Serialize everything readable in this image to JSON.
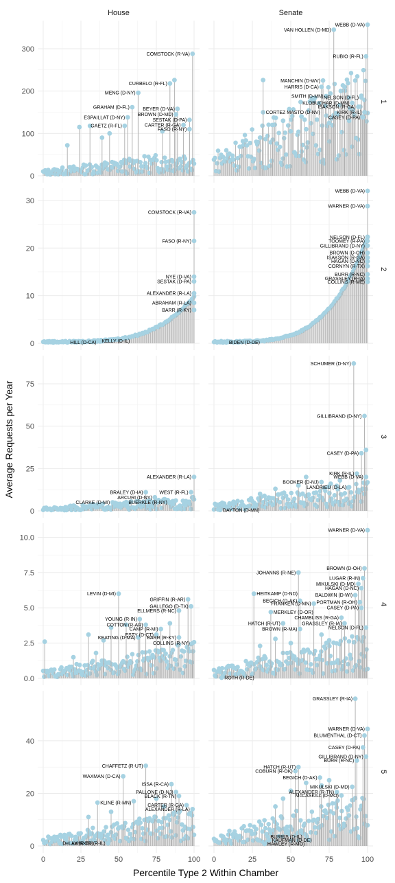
{
  "chart_data": {
    "type": "scatter",
    "subtype": "lollipop-faceted",
    "xlabel": "Percentile Type 2 Within Chamber",
    "ylabel": "Average Requests per Year",
    "columns": [
      "House",
      "Senate"
    ],
    "rows": [
      "1",
      "2",
      "3",
      "4",
      "5"
    ],
    "xlim": [
      0,
      100
    ],
    "x_ticks": [
      0,
      25,
      50,
      75,
      100
    ],
    "point_color": "#a6d2e2",
    "stem_color": "#b3b3b3",
    "grid": true,
    "facets": [
      {
        "col": "House",
        "row": "1",
        "ylim": [
          0,
          360
        ],
        "y_ticks": [
          0,
          100,
          200,
          300
        ],
        "base_max": 60,
        "points": [
          {
            "x": 99,
            "y": 288,
            "label": "COMSTOCK (R-VA)"
          },
          {
            "x": 84,
            "y": 218,
            "label": "CURBELO (R-FL)"
          },
          {
            "x": 87,
            "y": 226
          },
          {
            "x": 63,
            "y": 196,
            "label": "MENG (D-NY)"
          },
          {
            "x": 59,
            "y": 162,
            "label": "GRAHAM (D-FL)"
          },
          {
            "x": 56,
            "y": 138,
            "label": "ESPAILLAT (D-NY)"
          },
          {
            "x": 54,
            "y": 118,
            "label": "GAETZ (R-FL)"
          },
          {
            "x": 89,
            "y": 158,
            "label": "BEYER (D-VA)"
          },
          {
            "x": 88,
            "y": 145,
            "label": "BROWN (D-MD)"
          },
          {
            "x": 97,
            "y": 132,
            "label": "SESTAK (D-PA)"
          },
          {
            "x": 93,
            "y": 120,
            "label": "CARTER (R-GA)"
          },
          {
            "x": 97,
            "y": 110,
            "label": "FASO (R-NY)"
          },
          {
            "x": 24,
            "y": 115
          },
          {
            "x": 31,
            "y": 118
          },
          {
            "x": 39,
            "y": 90
          },
          {
            "x": 44,
            "y": 100
          },
          {
            "x": 16,
            "y": 72
          },
          {
            "x": 79,
            "y": 105
          }
        ]
      },
      {
        "col": "Senate",
        "row": "1",
        "ylim": [
          0,
          360
        ],
        "y_ticks": [
          0,
          100,
          200,
          300
        ],
        "base_max": 260,
        "points": [
          {
            "x": 100,
            "y": 357,
            "label": "WEBB (D-VA)"
          },
          {
            "x": 78,
            "y": 345,
            "label": "VAN HOLLEN (D-MD)"
          },
          {
            "x": 99,
            "y": 282,
            "label": "RUBIO (R-FL)"
          },
          {
            "x": 71,
            "y": 225,
            "label": "MANCHIN (D-WV)"
          },
          {
            "x": 70,
            "y": 210,
            "label": "HARRIS (D-CA)"
          },
          {
            "x": 73,
            "y": 188,
            "label": "SMITH (D-MN)"
          },
          {
            "x": 96,
            "y": 185,
            "label": "NELSON (D-FL)"
          },
          {
            "x": 90,
            "y": 172,
            "label": "KLOBUCHAR (D-MN)"
          },
          {
            "x": 94,
            "y": 163,
            "label": "ISAKSON (R-GA)"
          },
          {
            "x": 98,
            "y": 150,
            "label": "KIRK (R-IL)"
          },
          {
            "x": 97,
            "y": 138,
            "label": "CASEY (D-PA)"
          },
          {
            "x": 32,
            "y": 150,
            "label": "CORTEZ MASTO (D-NV)"
          },
          {
            "x": 32,
            "y": 226
          },
          {
            "x": 85,
            "y": 210
          },
          {
            "x": 57,
            "y": 140
          },
          {
            "x": 45,
            "y": 130
          },
          {
            "x": 38,
            "y": 120
          },
          {
            "x": 50,
            "y": 105
          },
          {
            "x": 60,
            "y": 110
          },
          {
            "x": 75,
            "y": 125
          },
          {
            "x": 30,
            "y": 90
          },
          {
            "x": 88,
            "y": 130
          }
        ]
      },
      {
        "col": "House",
        "row": "2",
        "ylim": [
          0,
          32
        ],
        "y_ticks": [
          0,
          10,
          20,
          30
        ],
        "base_max": 9.5,
        "points": [
          {
            "x": 100,
            "y": 27.5,
            "label": "COMSTOCK (R-VA)"
          },
          {
            "x": 100,
            "y": 21.5,
            "label": "FASO (R-NY)"
          },
          {
            "x": 100,
            "y": 14,
            "label": "NYE (D-VA)"
          },
          {
            "x": 100,
            "y": 13,
            "label": "SESTAK (D-PA)"
          },
          {
            "x": 100,
            "y": 10.5,
            "label": "ALEXANDER (R-LA)"
          },
          {
            "x": 100,
            "y": 8.5,
            "label": "ABRAHAM (R-LA)"
          },
          {
            "x": 100,
            "y": 7,
            "label": "BARR (R-KY)"
          },
          {
            "x": 16,
            "y": 0.2,
            "label": "HILL (D-CA)"
          },
          {
            "x": 37,
            "y": 0.5,
            "label": "KELLY (D-IL)"
          }
        ]
      },
      {
        "col": "Senate",
        "row": "2",
        "ylim": [
          0,
          32
        ],
        "y_ticks": [
          0,
          10,
          20,
          30
        ],
        "base_max": 22,
        "points": [
          {
            "x": 100,
            "y": 32,
            "label": "WEBB (D-VA)"
          },
          {
            "x": 100,
            "y": 28.8,
            "label": "WARNER (D-VA)"
          },
          {
            "x": 100,
            "y": 22.3,
            "label": "NELSON (D-FL)"
          },
          {
            "x": 100,
            "y": 21.5,
            "label": "TOOMEY (R-PA)"
          },
          {
            "x": 100,
            "y": 20.5,
            "label": "GILLIBRAND (D-NY)"
          },
          {
            "x": 100,
            "y": 19,
            "label": "BROWN (D-OH)"
          },
          {
            "x": 100,
            "y": 18,
            "label": "ISAKSON (R-GA)"
          },
          {
            "x": 100,
            "y": 17.2,
            "label": "HAGAN (D-NC)"
          },
          {
            "x": 100,
            "y": 16.2,
            "label": "CORNYN (R-TX)"
          },
          {
            "x": 100,
            "y": 14.5,
            "label": "BURR (R-NC)"
          },
          {
            "x": 100,
            "y": 13.6,
            "label": "GRASSLEY (R-IA)"
          },
          {
            "x": 100,
            "y": 12.9,
            "label": "COLLINS (R-ME)"
          },
          {
            "x": 8,
            "y": 0.2,
            "label": "BIDEN (D-DE)"
          }
        ]
      },
      {
        "col": "House",
        "row": "3",
        "ylim": [
          0,
          90
        ],
        "y_ticks": [
          0,
          25,
          50,
          75
        ],
        "base_max": 8,
        "points": [
          {
            "x": 100,
            "y": 20,
            "label": "ALEXANDER (R-LA)"
          },
          {
            "x": 68,
            "y": 11,
            "label": "BRALEY (D-IA)"
          },
          {
            "x": 98,
            "y": 11,
            "label": "WEST (R-FL)"
          },
          {
            "x": 74,
            "y": 8,
            "label": "ARCURI (D-NY)"
          },
          {
            "x": 46,
            "y": 5,
            "label": "CLARKE (D-MI)"
          },
          {
            "x": 84,
            "y": 5,
            "label": "BUERKLE (R-NY)"
          }
        ]
      },
      {
        "col": "Senate",
        "row": "3",
        "ylim": [
          0,
          90
        ],
        "y_ticks": [
          0,
          25,
          50,
          75
        ],
        "base_max": 18,
        "points": [
          {
            "x": 91,
            "y": 87,
            "label": "SCHUMER (D-NY)"
          },
          {
            "x": 98,
            "y": 56,
            "label": "GILLIBRAND (D-NY)"
          },
          {
            "x": 96,
            "y": 34,
            "label": "CASEY (D-PA)"
          },
          {
            "x": 99,
            "y": 36
          },
          {
            "x": 93,
            "y": 22,
            "label": "KIRK (R-IL)"
          },
          {
            "x": 99,
            "y": 20,
            "label": "WEBB (D-VA)"
          },
          {
            "x": 70,
            "y": 17,
            "label": "BOOKER (D-NJ)"
          },
          {
            "x": 88,
            "y": 14,
            "label": "LANDRIEU (D-LA)"
          },
          {
            "x": 4,
            "y": 0.5,
            "label": "DAYTON (D-MN)"
          },
          {
            "x": 60,
            "y": 20
          },
          {
            "x": 55,
            "y": 15
          },
          {
            "x": 40,
            "y": 13
          },
          {
            "x": 30,
            "y": 10
          },
          {
            "x": 82,
            "y": 18
          },
          {
            "x": 76,
            "y": 16
          }
        ]
      },
      {
        "col": "House",
        "row": "4",
        "ylim": [
          0,
          10.8
        ],
        "y_ticks": [
          0,
          2.5,
          5,
          7.5,
          10
        ],
        "y_tick_labels": [
          "0.0",
          "2.5",
          "5.0",
          "7.5",
          "10.0"
        ],
        "base_max": 2.5,
        "points": [
          {
            "x": 50,
            "y": 6,
            "label": "LEVIN (D-MI)"
          },
          {
            "x": 96,
            "y": 5.6,
            "label": "GRIFFIN (R-AR)"
          },
          {
            "x": 98,
            "y": 5.1,
            "label": "GALLEGO (D-TX)"
          },
          {
            "x": 90,
            "y": 4.8,
            "label": "ELLMERS (R-NC)"
          },
          {
            "x": 64,
            "y": 4.2,
            "label": "YOUNG (R-IN)"
          },
          {
            "x": 68,
            "y": 3.8,
            "label": "COTTON (R-AR)"
          },
          {
            "x": 78,
            "y": 3.5,
            "label": "CAMP (R-MI)"
          },
          {
            "x": 75,
            "y": 3.1,
            "label": "ESTY (D-CT)"
          },
          {
            "x": 63,
            "y": 2.9,
            "label": "KEATING (D-MA)"
          },
          {
            "x": 90,
            "y": 2.9,
            "label": "BARR (R-KY)"
          },
          {
            "x": 99,
            "y": 2.5,
            "label": "COLLINS (R-NY)"
          },
          {
            "x": 1,
            "y": 2.6
          },
          {
            "x": 30,
            "y": 3.1
          },
          {
            "x": 40,
            "y": 2.7
          },
          {
            "x": 45,
            "y": 3.6
          },
          {
            "x": 55,
            "y": 3.8
          },
          {
            "x": 84,
            "y": 3.9
          },
          {
            "x": 20,
            "y": 1.5
          },
          {
            "x": 35,
            "y": 1.8
          }
        ]
      },
      {
        "col": "Senate",
        "row": "4",
        "ylim": [
          0,
          10.8
        ],
        "y_ticks": [
          0,
          2.5,
          5,
          7.5,
          10
        ],
        "y_tick_labels": [
          "0.0",
          "2.5",
          "5.0",
          "7.5",
          "10.0"
        ],
        "base_max": 3.2,
        "points": [
          {
            "x": 100,
            "y": 10.5,
            "label": "WARNER (D-VA)"
          },
          {
            "x": 55,
            "y": 7.5,
            "label": "JOHANNS (R-NE)"
          },
          {
            "x": 98,
            "y": 7.8,
            "label": "BROWN (D-OH)"
          },
          {
            "x": 97,
            "y": 7.1,
            "label": "LUGAR (R-IN)"
          },
          {
            "x": 94,
            "y": 6.7,
            "label": "MIKULSKI (D-MD)"
          },
          {
            "x": 96,
            "y": 6.4,
            "label": "HAGAN (D-NC)"
          },
          {
            "x": 26,
            "y": 6,
            "label": "HEITKAMP (D-ND)"
          },
          {
            "x": 92,
            "y": 5.9,
            "label": "BALDWIN (D-WI)"
          },
          {
            "x": 56,
            "y": 5.5,
            "label": "BEGICH (D-AK)"
          },
          {
            "x": 95,
            "y": 5.4,
            "label": "PORTMAN (R-OH)"
          },
          {
            "x": 65,
            "y": 5.3,
            "label": "FRANKEN (D-MN)"
          },
          {
            "x": 96,
            "y": 5.0,
            "label": "CASEY (D-PA)"
          },
          {
            "x": 37,
            "y": 4.7,
            "label": "MERKLEY (D-OR)"
          },
          {
            "x": 83,
            "y": 4.3,
            "label": "CHAMBLISS (R-GA)"
          },
          {
            "x": 45,
            "y": 3.9,
            "label": "HATCH (R-UT)"
          },
          {
            "x": 85,
            "y": 3.9,
            "label": "GRASSLEY (R-IA)"
          },
          {
            "x": 56,
            "y": 3.5,
            "label": "BROWN (R-MA)"
          },
          {
            "x": 99,
            "y": 3.6,
            "label": "NELSON (D-FL)"
          },
          {
            "x": 5,
            "y": 0.05,
            "label": "ROTH (R-DE)"
          },
          {
            "x": 30,
            "y": 2.3
          },
          {
            "x": 40,
            "y": 2.8
          },
          {
            "x": 70,
            "y": 3.1
          },
          {
            "x": 75,
            "y": 2.7
          },
          {
            "x": 50,
            "y": 2.5
          }
        ]
      },
      {
        "col": "House",
        "row": "5",
        "ylim": [
          0,
          58
        ],
        "y_ticks": [
          0,
          20,
          40
        ],
        "base_max": 14,
        "points": [
          {
            "x": 68,
            "y": 30.5,
            "label": "CHAFFETZ (R-UT)"
          },
          {
            "x": 53,
            "y": 26.5,
            "label": "WAXMAN (D-CA)"
          },
          {
            "x": 85,
            "y": 23.5,
            "label": "ISSA (R-CA)"
          },
          {
            "x": 88,
            "y": 20.5,
            "label": "PALLONE (D-NJ)"
          },
          {
            "x": 90,
            "y": 19,
            "label": "BLACK (R-TN)"
          },
          {
            "x": 36,
            "y": 16.5,
            "label": "KLINE (R-MN)"
          },
          {
            "x": 95,
            "y": 15.5,
            "label": "CARTER (R-GA)"
          },
          {
            "x": 99,
            "y": 14,
            "label": "ALEXANDER (R-LA)"
          },
          {
            "x": 11,
            "y": 1,
            "label": "DeLAY (R-TX)"
          },
          {
            "x": 43,
            "y": 1,
            "label": "LaHOOD (R-IL)"
          },
          {
            "x": 60,
            "y": 17
          },
          {
            "x": 75,
            "y": 18
          },
          {
            "x": 45,
            "y": 13
          },
          {
            "x": 30,
            "y": 11
          },
          {
            "x": 80,
            "y": 15
          }
        ]
      },
      {
        "col": "Senate",
        "row": "5",
        "ylim": [
          0,
          58
        ],
        "y_ticks": [
          0,
          20,
          40
        ],
        "base_max": 20,
        "points": [
          {
            "x": 92,
            "y": 56,
            "label": "GRASSLEY (R-IA)"
          },
          {
            "x": 100,
            "y": 44.5,
            "label": "WARNER (D-VA)"
          },
          {
            "x": 98,
            "y": 42,
            "label": "BLUMENTHAL (D-CT)"
          },
          {
            "x": 97,
            "y": 37.5,
            "label": "CASEY (D-PA)"
          },
          {
            "x": 99,
            "y": 34,
            "label": "GILLIBRAND (D-NY)"
          },
          {
            "x": 93,
            "y": 32.5,
            "label": "BURR (R-NC)"
          },
          {
            "x": 55,
            "y": 30,
            "label": "HATCH (R-UT)"
          },
          {
            "x": 53,
            "y": 28.5,
            "label": "COBURN (R-OK)"
          },
          {
            "x": 69,
            "y": 26,
            "label": "BEGICH (D-AK)"
          },
          {
            "x": 90,
            "y": 22.5,
            "label": "MIKULSKI (D-MD)"
          },
          {
            "x": 80,
            "y": 20.5,
            "label": "ALEXANDER (R-TN)"
          },
          {
            "x": 83,
            "y": 19.2,
            "label": "McCASKILL (D-MO)"
          },
          {
            "x": 35,
            "y": 3.5,
            "label": "BURRIS (D-IL)"
          },
          {
            "x": 36,
            "y": 2.2,
            "label": "KAUFMAN (D-DE)"
          },
          {
            "x": 33,
            "y": 0.8,
            "label": "HAWLEY (R-MO)"
          },
          {
            "x": 60,
            "y": 24
          },
          {
            "x": 70,
            "y": 23
          },
          {
            "x": 45,
            "y": 18
          },
          {
            "x": 50,
            "y": 21
          },
          {
            "x": 75,
            "y": 25
          },
          {
            "x": 40,
            "y": 15
          }
        ]
      }
    ]
  }
}
